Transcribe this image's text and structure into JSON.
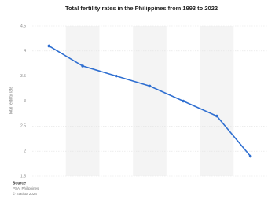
{
  "chart_data": {
    "type": "line",
    "title": "Total fertility rates in the Philippines from 1993 to 2022",
    "y_label": "Total fertility rate",
    "categories": [
      null,
      null,
      null,
      null,
      null,
      null,
      null
    ],
    "series": [
      {
        "name": "Total fertility rate",
        "color": "#2f6fd1",
        "values": [
          4.1,
          3.7,
          3.5,
          3.3,
          3.0,
          2.7,
          1.9
        ]
      }
    ],
    "ylim": [
      1.5,
      4.5
    ],
    "yticks": [
      1.5,
      2,
      2.5,
      3,
      3.5,
      4,
      4.5
    ],
    "grid": true,
    "source_heading": "Source",
    "source": "PSA; Philippines",
    "copyright": "© Statista 2024"
  }
}
